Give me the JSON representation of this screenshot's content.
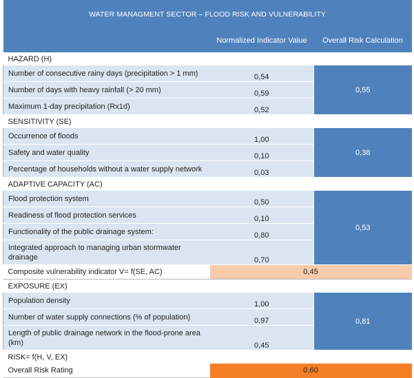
{
  "title": "WATER MANAGMENT SECTOR – FLOOD RISK AND VULNERABILITY",
  "columns": {
    "normalized": "Normalized Indicator Value",
    "overall": "Overall Risk Calculation"
  },
  "hazard": {
    "heading": "HAZARD (H)",
    "rows": [
      {
        "label": "Number of consecutive rainy days (precipitation > 1 mm)",
        "value": "0,54"
      },
      {
        "label": "Number of days with heavy rainfall (> 20 mm)",
        "value": "0,59"
      },
      {
        "label": "Maximum 1-day precipitation (Rx1d)",
        "value": "0,52"
      }
    ],
    "overall": "0,55"
  },
  "sensitivity": {
    "heading": "SENSITIVITY (SE)",
    "rows": [
      {
        "label": "Occurrence of floods",
        "value": "1,00"
      },
      {
        "label": "Safety and water quality",
        "value": "0,10"
      },
      {
        "label": "Percentage of households without a water supply network",
        "value": "0,03"
      }
    ],
    "overall": "0,38"
  },
  "adaptive": {
    "heading": "ADAPTIVE CAPACITY (AC)",
    "rows": [
      {
        "label": "Flood protection system",
        "value": "0,50"
      },
      {
        "label": "Readiness of flood protection services",
        "value": "0,10"
      },
      {
        "label": "Functionality of the public drainage system:",
        "value": "0,80"
      },
      {
        "label": "Integrated approach to managing urban stormwater drainage",
        "value": "0,70"
      }
    ],
    "overall": "0,53"
  },
  "composite": {
    "label": "Composite vulnerability indicator V= f(SE, AC)",
    "value": "0,45"
  },
  "exposure": {
    "heading": "EXPOSURE (EX)",
    "rows": [
      {
        "label": "Population density",
        "value": "1,00"
      },
      {
        "label": "Number of water supply connections (% of population)",
        "value": "0,97"
      },
      {
        "label": "Length of public drainage network in the flood-prone area (km)",
        "value": "0,45"
      }
    ],
    "overall": "0,81"
  },
  "risk_formula": "RISK= f(H, V, EX)",
  "overall_rating": {
    "label": "Overall Risk Rating",
    "value": "0,60"
  },
  "colors": {
    "header_blue": "#4f81bd",
    "light_blue": "#dbe5f1",
    "peach": "#f8cbad",
    "orange": "#f47f24"
  }
}
